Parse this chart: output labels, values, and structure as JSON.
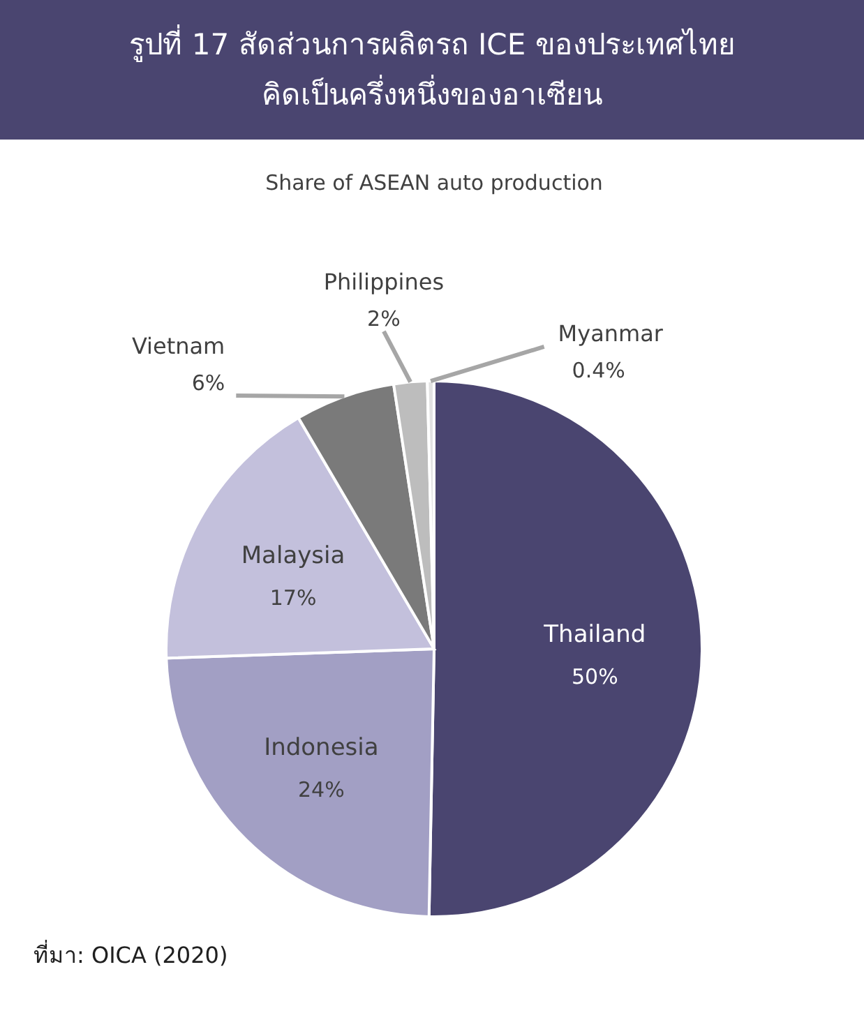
{
  "chart_data": {
    "type": "pie",
    "title": "รูปที่ 17 สัดส่วนการผลิตรถ ICE ของประเทศไทย\nคิดเป็นครึ่งหนึ่งของอาเซียน",
    "subtitle": "Share of ASEAN auto production",
    "categories": [
      "Thailand",
      "Indonesia",
      "Malaysia",
      "Vietnam",
      "Philippines",
      "Myanmar"
    ],
    "values": [
      50,
      24,
      17,
      6,
      2,
      0.4
    ],
    "value_labels": [
      "50%",
      "24%",
      "17%",
      "6%",
      "2%",
      "0.4%"
    ],
    "colors": [
      "#4a4570",
      "#a29fc4",
      "#c3c0dc",
      "#7a7a7a",
      "#bdbdbd",
      "#e2e2e2"
    ],
    "annotations": [
      "ที่มา: OICA (2020)"
    ]
  }
}
